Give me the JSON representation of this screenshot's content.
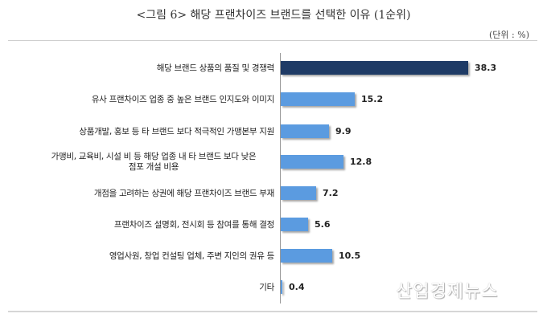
{
  "header": {
    "title": "<그림 6> 해당 프랜차이즈 브랜드를 선택한 이유 (1순위)",
    "unit": "(단위 : %)"
  },
  "colors": {
    "highlight_bar": "#1F3B66",
    "bar": "#5B9BE0"
  },
  "watermark": "산업경제뉴스",
  "chart_data": {
    "type": "bar",
    "orientation": "horizontal",
    "title": "<그림 6> 해당 프랜차이즈 브랜드를 선택한 이유 (1순위)",
    "unit": "%",
    "xlabel": "",
    "ylabel": "",
    "grid": false,
    "legend": null,
    "categories": [
      "해당 브랜드 상품의 품질 및 경쟁력",
      "유사 프랜차이즈 업종 중 높은 브랜드 인지도와 이미지",
      "상품개발, 홍보 등 타 브랜드 보다 적극적인 가맹본부 지원",
      "가맹비, 교육비, 시설 비 등 해당 업종 내 타 브랜드 보다 낮은 점포 개설 비용",
      "개점을 고려하는 상권에 해당 프랜차이즈 브랜드 부재",
      "프랜차이즈 설명회, 전시회 등 참여를 통해 결정",
      "영업사원, 창업 컨설팅 업체, 주변 지인의 권유 등",
      "기타"
    ],
    "values": [
      38.3,
      15.2,
      9.9,
      12.8,
      7.2,
      5.6,
      10.5,
      0.4
    ],
    "value_labels": [
      "38.3",
      "15.2",
      "9.9",
      "12.8",
      "7.2",
      "5.6",
      "10.5",
      "0.4"
    ],
    "highlighted_index": 0
  },
  "rows": [
    {
      "label": "해당 브랜드 상품의 품질 및 경쟁력",
      "value": "38.3"
    },
    {
      "label": "유사 프랜차이즈 업종 중 높은 브랜드 인지도와 이미지",
      "value": "15.2"
    },
    {
      "label": "상품개발, 홍보 등 타 브랜드 보다 적극적인 가맹본부 지원",
      "value": "9.9"
    },
    {
      "label_line1": "가맹비, 교육비, 시설 비 등 해당 업종 내 타 브랜드 보다 낮은",
      "label_line2": "점포 개설 비용",
      "value": "12.8"
    },
    {
      "label": "개점을 고려하는 상권에 해당 프랜차이즈 브랜드 부재",
      "value": "7.2"
    },
    {
      "label": "프랜차이즈 설명회, 전시회 등 참여를 통해 결정",
      "value": "5.6"
    },
    {
      "label": "영업사원, 창업 컨설팅 업체, 주변 지인의 권유 등",
      "value": "10.5"
    },
    {
      "label": "기타",
      "value": "0.4"
    }
  ]
}
